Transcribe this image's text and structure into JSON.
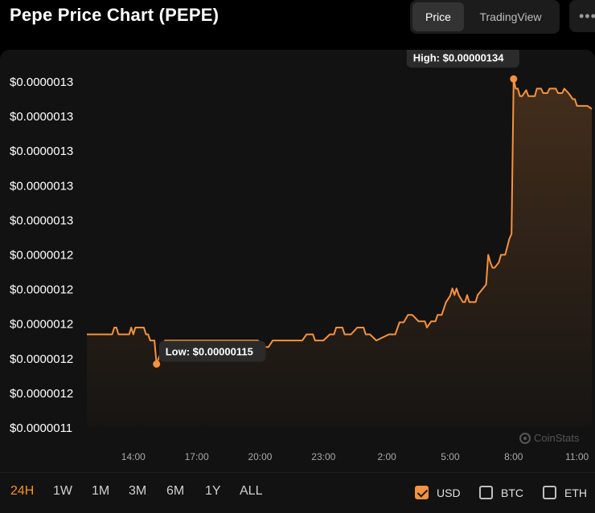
{
  "header": {
    "title": "Pepe Price Chart (PEPE)",
    "view_options": [
      "Price",
      "TradingView"
    ],
    "active_view": "Price"
  },
  "colors": {
    "line": "#f5923e",
    "background": "#121212",
    "active_range": "#f7931a"
  },
  "watermark": "CoinStats",
  "chart_data": {
    "type": "area",
    "y_tick_labels": [
      "$0.0000013",
      "$0.0000013",
      "$0.0000013",
      "$0.0000013",
      "$0.0000013",
      "$0.0000012",
      "$0.0000012",
      "$0.0000012",
      "$0.0000012",
      "$0.0000012",
      "$0.0000011"
    ],
    "ylim": [
      1.108e-06,
      1.338e-06
    ],
    "x_tick_labels": [
      "14:00",
      "17:00",
      "20:00",
      "23:00",
      "2:00",
      "5:00",
      "8:00",
      "11:00"
    ],
    "x_tick_hours": [
      14,
      17,
      20,
      23,
      26,
      29,
      32,
      35
    ],
    "xlim": [
      11.8,
      35.7
    ],
    "high_label": "High: $0.00000134",
    "low_label": "Low: $0.00000115",
    "high_point": {
      "x": 32.0,
      "y": 1.34e-06
    },
    "low_point": {
      "x": 15.1,
      "y": 1.15e-06
    },
    "series": [
      {
        "x": [
          11.8,
          12.5,
          13.0,
          13.1,
          13.2,
          13.3,
          13.8,
          13.9,
          14.0,
          14.1,
          14.5,
          14.6,
          14.7,
          14.8,
          15.0,
          15.1,
          15.5,
          16.5,
          17.5,
          18.5,
          19.0,
          19.5,
          19.8,
          19.9,
          20.2,
          20.4,
          20.6,
          20.7,
          21.0,
          21.4,
          22.0,
          22.2,
          22.5,
          22.6,
          22.8,
          23.0,
          23.3,
          23.5,
          23.6,
          23.9,
          24.0,
          24.3,
          24.6,
          24.8,
          24.9,
          25.0,
          25.2,
          25.5,
          26.1,
          26.2,
          26.4,
          26.6,
          26.8,
          27.0,
          27.2,
          27.5,
          27.8,
          27.9,
          28.1,
          28.3,
          28.4,
          28.6,
          28.8,
          29.0,
          29.1,
          29.2,
          29.3,
          29.4,
          29.6,
          29.7,
          29.8,
          29.9,
          30.1,
          30.2,
          30.3,
          30.7,
          30.8,
          30.9,
          31.0,
          31.1,
          31.3,
          31.4,
          31.6,
          31.8,
          31.9,
          32.0,
          32.1,
          32.2,
          32.3,
          32.4,
          32.6,
          32.7,
          33.0,
          33.1,
          33.3,
          33.4,
          33.6,
          33.7,
          34.0,
          34.1,
          34.3,
          34.4,
          34.6,
          34.8,
          34.9,
          35.0,
          35.3,
          35.5,
          35.7
        ],
        "values": [
          1.1698e-06,
          1.1698e-06,
          1.1698e-06,
          1.1743e-06,
          1.1743e-06,
          1.1698e-06,
          1.1698e-06,
          1.1743e-06,
          1.1698e-06,
          1.1743e-06,
          1.1743e-06,
          1.1698e-06,
          1.1698e-06,
          1.1657e-06,
          1.1657e-06,
          1.15e-06,
          1.1657e-06,
          1.1657e-06,
          1.1657e-06,
          1.1657e-06,
          1.1657e-06,
          1.1657e-06,
          1.1657e-06,
          1.1657e-06,
          1.1614e-06,
          1.1614e-06,
          1.1657e-06,
          1.1657e-06,
          1.1657e-06,
          1.1657e-06,
          1.1657e-06,
          1.1698e-06,
          1.1698e-06,
          1.1657e-06,
          1.1657e-06,
          1.1657e-06,
          1.1698e-06,
          1.1698e-06,
          1.1743e-06,
          1.1743e-06,
          1.1698e-06,
          1.1698e-06,
          1.1743e-06,
          1.1743e-06,
          1.1743e-06,
          1.1698e-06,
          1.1698e-06,
          1.1657e-06,
          1.1698e-06,
          1.1698e-06,
          1.1698e-06,
          1.1778e-06,
          1.1778e-06,
          1.1828e-06,
          1.1828e-06,
          1.1785e-06,
          1.1785e-06,
          1.1743e-06,
          1.1785e-06,
          1.1785e-06,
          1.1828e-06,
          1.1828e-06,
          1.1913e-06,
          1.1955e-06,
          1.2004e-06,
          1.196e-06,
          1.2004e-06,
          1.196e-06,
          1.1913e-06,
          1.1913e-06,
          1.196e-06,
          1.1913e-06,
          1.1913e-06,
          1.1913e-06,
          1.196e-06,
          1.203e-06,
          1.2228e-06,
          1.2177e-06,
          1.2142e-06,
          1.2142e-06,
          1.2177e-06,
          1.2228e-06,
          1.2228e-06,
          1.2335e-06,
          1.2367e-06,
          1.34e-06,
          1.3335e-06,
          1.3335e-06,
          1.3285e-06,
          1.3285e-06,
          1.3325e-06,
          1.3285e-06,
          1.3285e-06,
          1.3335e-06,
          1.3335e-06,
          1.3305e-06,
          1.3305e-06,
          1.3335e-06,
          1.3335e-06,
          1.3305e-06,
          1.3305e-06,
          1.3335e-06,
          1.3305e-06,
          1.3265e-06,
          1.3265e-06,
          1.322e-06,
          1.322e-06,
          1.322e-06,
          1.32e-06
        ]
      }
    ]
  },
  "ranges": {
    "items": [
      "24H",
      "1W",
      "1M",
      "3M",
      "6M",
      "1Y",
      "ALL"
    ],
    "active": "24H"
  },
  "currencies": [
    {
      "label": "USD",
      "checked": true
    },
    {
      "label": "BTC",
      "checked": false
    },
    {
      "label": "ETH",
      "checked": false
    }
  ]
}
